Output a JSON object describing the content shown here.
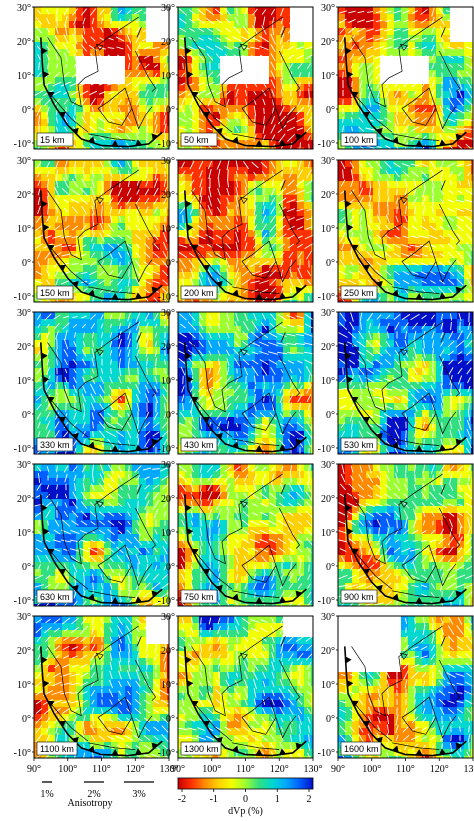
{
  "panels": [
    {
      "depth": "15 km"
    },
    {
      "depth": "50 km"
    },
    {
      "depth": "100 km"
    },
    {
      "depth": "150 km"
    },
    {
      "depth": "200 km"
    },
    {
      "depth": "250 km"
    },
    {
      "depth": "330 km"
    },
    {
      "depth": "430 km"
    },
    {
      "depth": "530 km"
    },
    {
      "depth": "630 km"
    },
    {
      "depth": "750 km"
    },
    {
      "depth": "900 km"
    },
    {
      "depth": "1100 km"
    },
    {
      "depth": "1300 km"
    },
    {
      "depth": "1600 km"
    }
  ],
  "lat_ticks": [
    "30°",
    "20°",
    "10°",
    "0°",
    "-10°"
  ],
  "lon_ticks": [
    "90°",
    "100°",
    "110°",
    "120°",
    "130°"
  ],
  "anisotropy_legend": {
    "title": "Anisotropy",
    "items": [
      "1%",
      "2%",
      "3%"
    ]
  },
  "colorbar": {
    "title": "dVp (%)",
    "ticks": [
      "-2",
      "-1",
      "0",
      "1",
      "2"
    ],
    "colors": [
      "#c80000",
      "#ff3000",
      "#ff8c00",
      "#ffd000",
      "#f2ff00",
      "#9cff30",
      "#30e080",
      "#00d8d0",
      "#00a8ff",
      "#0060ff",
      "#0010c8"
    ]
  },
  "colors": {
    "land_outline": "#000000",
    "trench": "#000000"
  }
}
